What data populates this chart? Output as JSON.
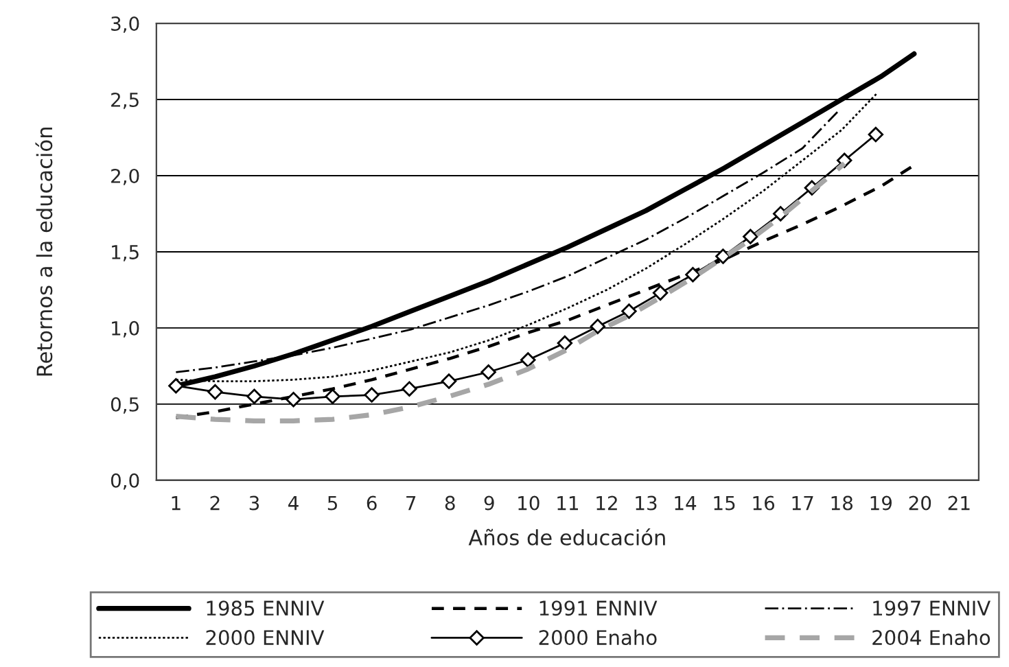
{
  "chart_data": {
    "type": "line",
    "xlabel": "Años de educación",
    "ylabel": "Retornos a la educación",
    "xlim": [
      0.5,
      21.5
    ],
    "xticks": [
      1,
      2,
      3,
      4,
      5,
      6,
      7,
      8,
      9,
      10,
      11,
      12,
      13,
      14,
      15,
      16,
      17,
      18,
      19,
      20,
      21
    ],
    "ylim": [
      0,
      3
    ],
    "yticks": [
      {
        "value": 0,
        "label": "0,0"
      },
      {
        "value": 0.5,
        "label": "0,5"
      },
      {
        "value": 1,
        "label": "1,0"
      },
      {
        "value": 1.5,
        "label": "1,5"
      },
      {
        "value": 2,
        "label": "2,0"
      },
      {
        "value": 2.5,
        "label": "2,5"
      },
      {
        "value": 3,
        "label": "3,0"
      }
    ],
    "grid": "y",
    "legend": "bottom",
    "series": [
      {
        "name": "1985 ENNIV",
        "color": "#000000",
        "line_style": "solid",
        "marker": "none",
        "x": [
          1,
          2,
          3,
          4,
          5,
          6,
          7,
          8,
          9,
          10,
          11,
          12,
          13,
          14,
          15,
          16,
          17,
          18,
          19,
          19.85
        ],
        "values": [
          0.62,
          0.68,
          0.75,
          0.83,
          0.92,
          1.01,
          1.11,
          1.21,
          1.31,
          1.42,
          1.53,
          1.65,
          1.77,
          1.91,
          2.05,
          2.2,
          2.35,
          2.5,
          2.65,
          2.8
        ]
      },
      {
        "name": "1991 ENNIV",
        "color": "#000000",
        "line_style": "dashed",
        "marker": "none",
        "x": [
          1,
          2,
          3,
          4,
          5,
          6,
          7,
          8,
          9,
          10,
          11,
          12,
          13,
          14,
          15,
          16,
          17,
          18,
          19,
          19.8
        ],
        "values": [
          0.41,
          0.45,
          0.5,
          0.55,
          0.6,
          0.66,
          0.73,
          0.8,
          0.88,
          0.97,
          1.05,
          1.15,
          1.25,
          1.35,
          1.45,
          1.57,
          1.68,
          1.8,
          1.93,
          2.06
        ]
      },
      {
        "name": "1997 ENNIV",
        "color": "#000000",
        "line_style": "dashdot",
        "marker": "none",
        "x": [
          1,
          2,
          3,
          4,
          5,
          6,
          7,
          8,
          9,
          10,
          11,
          12,
          13,
          14,
          15,
          16,
          17,
          17.9
        ],
        "values": [
          0.71,
          0.74,
          0.78,
          0.82,
          0.87,
          0.93,
          0.99,
          1.07,
          1.15,
          1.24,
          1.34,
          1.46,
          1.58,
          1.72,
          1.87,
          2.02,
          2.18,
          2.42
        ]
      },
      {
        "name": "2000 ENNIV",
        "color": "#000000",
        "line_style": "dotted",
        "marker": "none",
        "x": [
          1,
          2,
          3,
          4,
          5,
          6,
          7,
          8,
          9,
          10,
          11,
          12,
          13,
          14,
          15,
          16,
          17,
          18,
          18.9
        ],
        "values": [
          0.66,
          0.65,
          0.65,
          0.66,
          0.68,
          0.72,
          0.78,
          0.84,
          0.92,
          1.02,
          1.13,
          1.25,
          1.39,
          1.55,
          1.72,
          1.9,
          2.1,
          2.3,
          2.54
        ]
      },
      {
        "name": "2000 Enaho",
        "color": "#000000",
        "line_style": "solid",
        "marker": "diamond",
        "x": [
          1,
          2,
          3,
          4,
          5,
          6,
          6.96,
          7.97,
          8.98,
          9.99,
          10.93,
          11.77,
          12.57,
          13.37,
          14.2,
          14.97,
          15.67,
          16.44,
          17.24,
          18.07,
          18.87
        ],
        "values": [
          0.62,
          0.58,
          0.55,
          0.53,
          0.55,
          0.56,
          0.6,
          0.65,
          0.71,
          0.79,
          0.9,
          1.01,
          1.11,
          1.23,
          1.35,
          1.47,
          1.6,
          1.75,
          1.92,
          2.1,
          2.27
        ]
      },
      {
        "name": "2004 Enaho",
        "color": "#a6a6a6",
        "line_style": "dashed",
        "marker": "none",
        "x": [
          1,
          2,
          3,
          4,
          5,
          6,
          6.96,
          7.97,
          8.98,
          9.99,
          10.93,
          11.77,
          12.57,
          13.37,
          14.2,
          14.97,
          15.67,
          16.44,
          17.24,
          18.07
        ],
        "values": [
          0.42,
          0.4,
          0.39,
          0.39,
          0.4,
          0.43,
          0.48,
          0.55,
          0.63,
          0.73,
          0.85,
          0.98,
          1.08,
          1.2,
          1.33,
          1.46,
          1.58,
          1.73,
          1.9,
          2.08
        ]
      }
    ]
  }
}
